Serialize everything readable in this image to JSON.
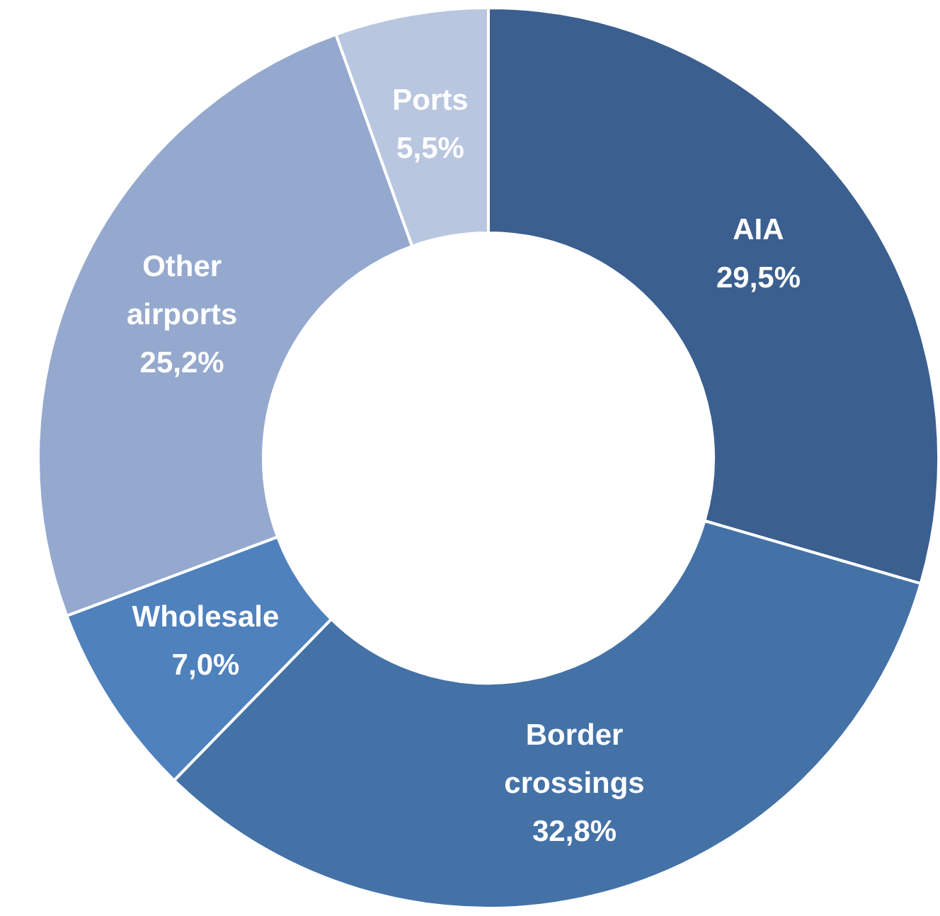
{
  "chart_data": {
    "type": "donut",
    "categories": [
      "AIA",
      "Border crossings",
      "Wholesale",
      "Other airports",
      "Ports"
    ],
    "values": [
      29.5,
      32.8,
      7.0,
      25.2,
      5.5
    ],
    "value_labels": [
      "29,5%",
      "32,8%",
      "7,0%",
      "25,2%",
      "5,5%"
    ],
    "colors": [
      "#3b5f8f",
      "#4472a7",
      "#4f81bd",
      "#95a9cf",
      "#b9c6e0"
    ]
  }
}
